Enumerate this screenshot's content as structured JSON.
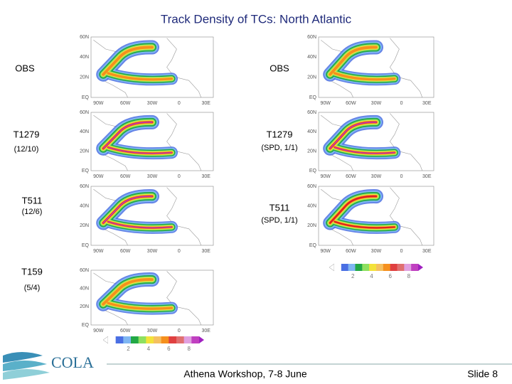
{
  "title": "Track Density of TCs: North Atlantic",
  "panels": [
    {
      "label": "OBS"
    },
    {
      "label": "T1279",
      "sublabel": "(12/10)"
    },
    {
      "label": "T511",
      "sublabel": "(12/6)"
    },
    {
      "label": "T159",
      "sublabel": "(5/4)"
    },
    {
      "label": "OBS"
    },
    {
      "label": "T1279",
      "sublabel": "(SPD, 1/1)"
    },
    {
      "label": "T511",
      "sublabel": "(SPD, 1/1)"
    }
  ],
  "map_axes": {
    "lat": [
      "60N",
      "40N",
      "20N",
      "EQ"
    ],
    "lon": [
      "90W",
      "60W",
      "30W",
      "0",
      "30E"
    ]
  },
  "colorbar": {
    "labels": [
      2,
      4,
      6,
      8
    ]
  },
  "logo": "COLA",
  "footer": {
    "center": "Athena Workshop, 7-8 June",
    "right": "Slide 8"
  }
}
